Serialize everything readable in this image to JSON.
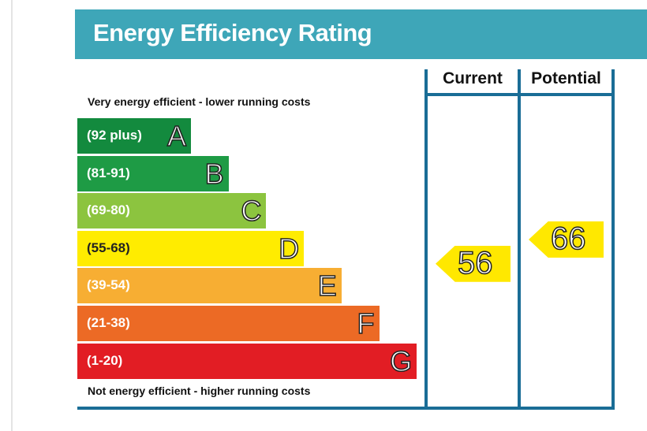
{
  "title": "Energy Efficiency Rating",
  "chart_data": {
    "type": "bar",
    "title": "Energy Efficiency Rating",
    "top_note": "Very energy efficient - lower running costs",
    "bottom_note": "Not energy efficient - higher running costs",
    "columns": [
      "Current",
      "Potential"
    ],
    "bands": [
      {
        "letter": "A",
        "range": "(92 plus)",
        "min": 92,
        "max": 100,
        "color": "#138a3e"
      },
      {
        "letter": "B",
        "range": "(81-91)",
        "min": 81,
        "max": 91,
        "color": "#1e9b45"
      },
      {
        "letter": "C",
        "range": "(69-80)",
        "min": 69,
        "max": 80,
        "color": "#8cc43f"
      },
      {
        "letter": "D",
        "range": "(55-68)",
        "min": 55,
        "max": 68,
        "color": "#ffec00"
      },
      {
        "letter": "E",
        "range": "(39-54)",
        "min": 39,
        "max": 54,
        "color": "#f7ae33"
      },
      {
        "letter": "F",
        "range": "(21-38)",
        "min": 21,
        "max": 38,
        "color": "#ec6a25"
      },
      {
        "letter": "G",
        "range": "(1-20)",
        "min": 1,
        "max": 20,
        "color": "#e21d24"
      }
    ],
    "current": 56,
    "potential": 66,
    "arrow_color": "#ffe800"
  }
}
